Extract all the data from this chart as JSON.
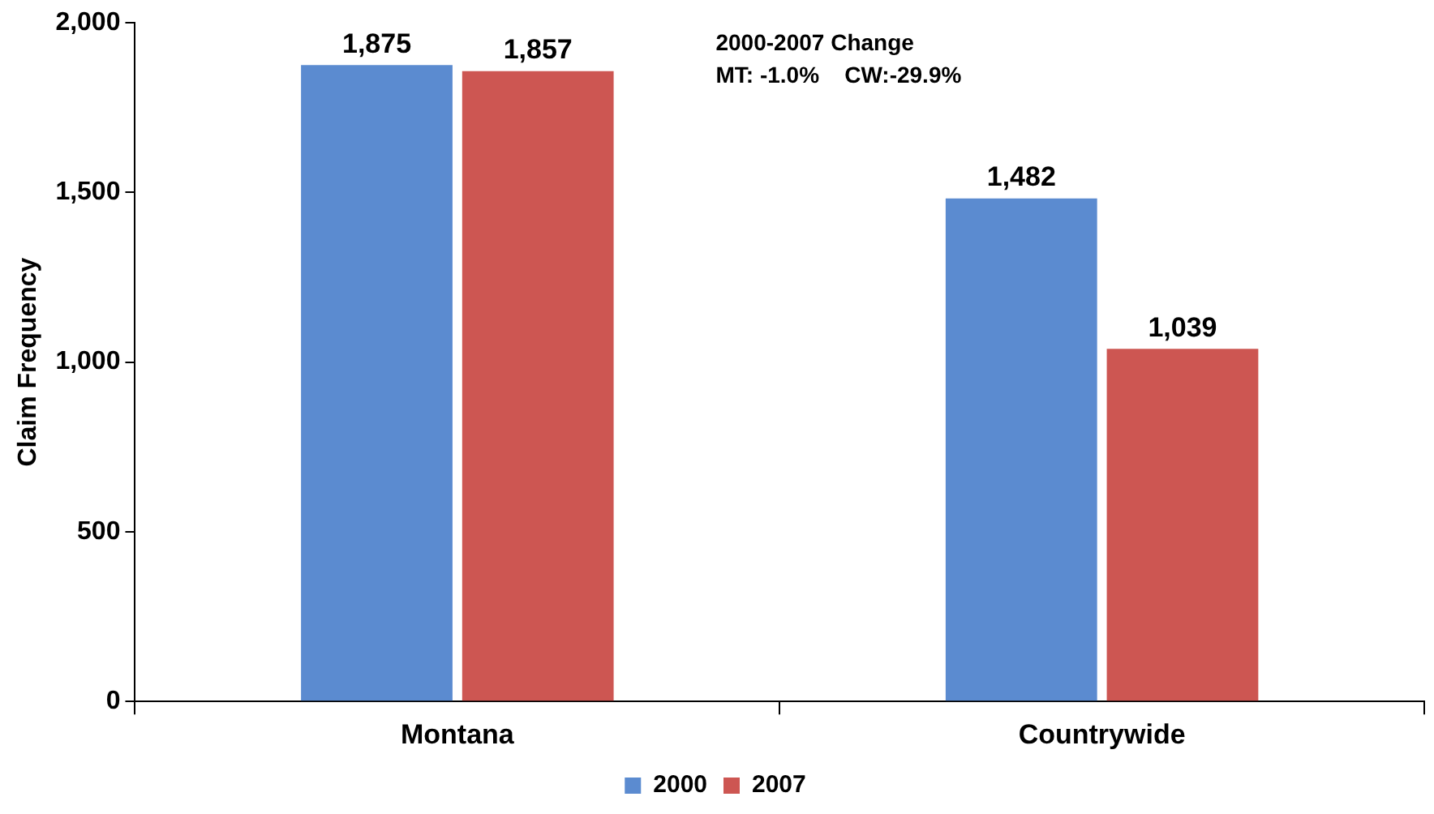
{
  "chart_data": {
    "type": "bar",
    "ylabel": "Claim Frequency",
    "categories": [
      "Montana",
      "Countrywide"
    ],
    "series": [
      {
        "name": "2000",
        "color": "#5b8bd0",
        "values": [
          1875,
          1482
        ],
        "value_labels": [
          "1,875",
          "1,482"
        ]
      },
      {
        "name": "2007",
        "color": "#cd5652",
        "values": [
          1857,
          1039
        ],
        "value_labels": [
          "1,857",
          "1,039"
        ]
      }
    ],
    "ylim": [
      0,
      2000
    ],
    "yticks": [
      {
        "value": 0,
        "label": "0"
      },
      {
        "value": 500,
        "label": "500"
      },
      {
        "value": 1000,
        "label": "1,000"
      },
      {
        "value": 1500,
        "label": "1,500"
      },
      {
        "value": 2000,
        "label": "2,000"
      }
    ],
    "annotations": [
      "2000-2007 Change",
      "MT: -1.0%    CW:-29.9%"
    ],
    "legend": "bottom",
    "grid": false
  }
}
